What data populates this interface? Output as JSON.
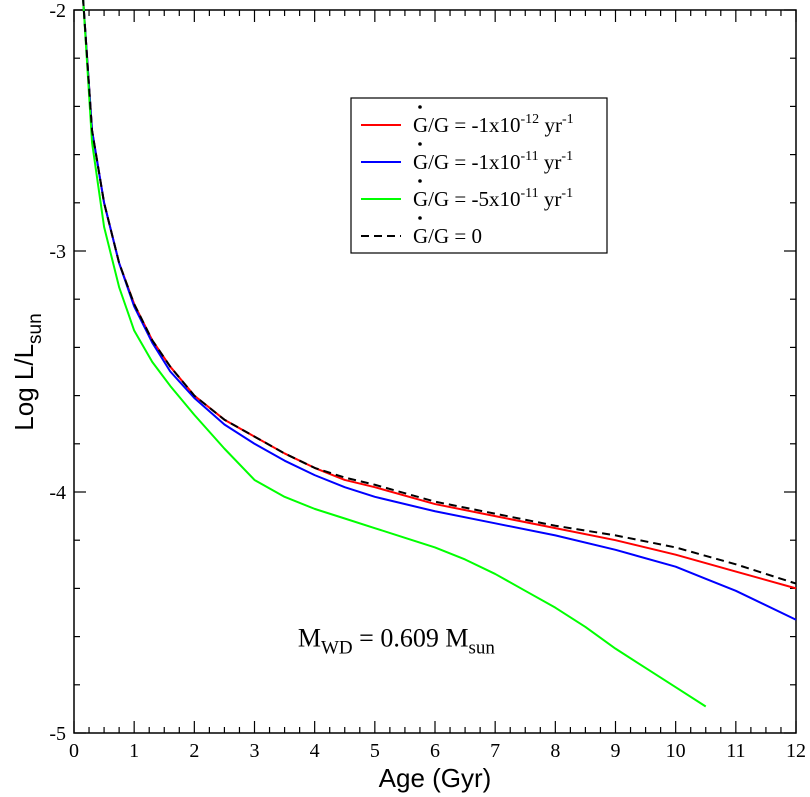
{
  "chart_data": {
    "type": "line",
    "title": "",
    "xlabel": "Age (Gyr)",
    "ylabel": {
      "main": "Log L/L",
      "sub": "sun"
    },
    "xlim": [
      0,
      12
    ],
    "ylim": [
      -5,
      -2
    ],
    "xticks": [
      0,
      1,
      2,
      3,
      4,
      5,
      6,
      7,
      8,
      9,
      10,
      11,
      12
    ],
    "xtick_labels": [
      "0",
      "1",
      "2",
      "3",
      "4",
      "5",
      "6",
      "7",
      "8",
      "9",
      "10",
      "11",
      "12"
    ],
    "yticks": [
      -5,
      -4,
      -3,
      -2
    ],
    "ytick_labels": [
      "-5",
      "-4",
      "-3",
      "-2"
    ],
    "grid": false,
    "legend_position": "top-right",
    "series": [
      {
        "legend": {
          "pre": "G/G = -1x10",
          "exp1": "-12",
          "mid": " yr",
          "exp2": "-1"
        },
        "color": "#ff0000",
        "dash": "solid",
        "x": [
          0.15,
          0.3,
          0.5,
          0.75,
          1.0,
          1.3,
          1.6,
          2.0,
          2.5,
          3.0,
          3.5,
          4.0,
          4.5,
          5.0,
          6.0,
          7.0,
          8.0,
          9.0,
          10.0,
          11.0,
          12.0
        ],
        "y": [
          -1.95,
          -2.5,
          -2.8,
          -3.05,
          -3.22,
          -3.37,
          -3.48,
          -3.6,
          -3.7,
          -3.77,
          -3.84,
          -3.9,
          -3.95,
          -3.98,
          -4.05,
          -4.1,
          -4.15,
          -4.2,
          -4.26,
          -4.33,
          -4.4
        ]
      },
      {
        "legend": {
          "pre": "G/G = -1x10",
          "exp1": "-11",
          "mid": " yr",
          "exp2": "-1"
        },
        "color": "#0000ff",
        "dash": "solid",
        "x": [
          0.15,
          0.3,
          0.5,
          0.75,
          1.0,
          1.3,
          1.6,
          2.0,
          2.5,
          3.0,
          3.5,
          4.0,
          4.5,
          5.0,
          6.0,
          7.0,
          8.0,
          9.0,
          10.0,
          10.5,
          11.0,
          12.0
        ],
        "y": [
          -1.95,
          -2.5,
          -2.8,
          -3.05,
          -3.23,
          -3.38,
          -3.5,
          -3.61,
          -3.72,
          -3.8,
          -3.87,
          -3.93,
          -3.98,
          -4.02,
          -4.08,
          -4.13,
          -4.18,
          -4.24,
          -4.31,
          -4.36,
          -4.41,
          -4.53
        ]
      },
      {
        "legend": {
          "pre": "G/G = -5x10",
          "exp1": "-11",
          "mid": " yr",
          "exp2": "-1"
        },
        "color": "#00ff00",
        "dash": "solid",
        "x": [
          0.15,
          0.3,
          0.5,
          0.75,
          1.0,
          1.3,
          1.6,
          2.0,
          2.5,
          3.0,
          3.5,
          4.0,
          4.5,
          5.0,
          5.5,
          6.0,
          6.5,
          7.0,
          7.5,
          8.0,
          8.5,
          9.0,
          9.5,
          10.0,
          10.5
        ],
        "y": [
          -1.95,
          -2.55,
          -2.9,
          -3.15,
          -3.33,
          -3.46,
          -3.56,
          -3.68,
          -3.82,
          -3.95,
          -4.02,
          -4.07,
          -4.11,
          -4.15,
          -4.19,
          -4.23,
          -4.28,
          -4.34,
          -4.41,
          -4.48,
          -4.56,
          -4.65,
          -4.73,
          -4.81,
          -4.89
        ]
      },
      {
        "legend": {
          "pre": "G/G = 0",
          "exp1": "",
          "mid": "",
          "exp2": ""
        },
        "color": "#000000",
        "dash": "dashed",
        "x": [
          0.15,
          0.3,
          0.5,
          0.75,
          1.0,
          1.3,
          1.6,
          2.0,
          2.5,
          3.0,
          3.5,
          4.0,
          4.5,
          5.0,
          6.0,
          7.0,
          8.0,
          9.0,
          10.0,
          11.0,
          12.0
        ],
        "y": [
          -1.95,
          -2.5,
          -2.8,
          -3.05,
          -3.22,
          -3.37,
          -3.48,
          -3.6,
          -3.7,
          -3.77,
          -3.84,
          -3.9,
          -3.94,
          -3.97,
          -4.04,
          -4.09,
          -4.14,
          -4.18,
          -4.23,
          -4.3,
          -4.38
        ]
      }
    ],
    "annotation": {
      "main": "M",
      "sub1": "WD",
      "mid": " = 0.609 M",
      "sub2": "sun",
      "x": 5.3,
      "y": -4.6
    }
  }
}
